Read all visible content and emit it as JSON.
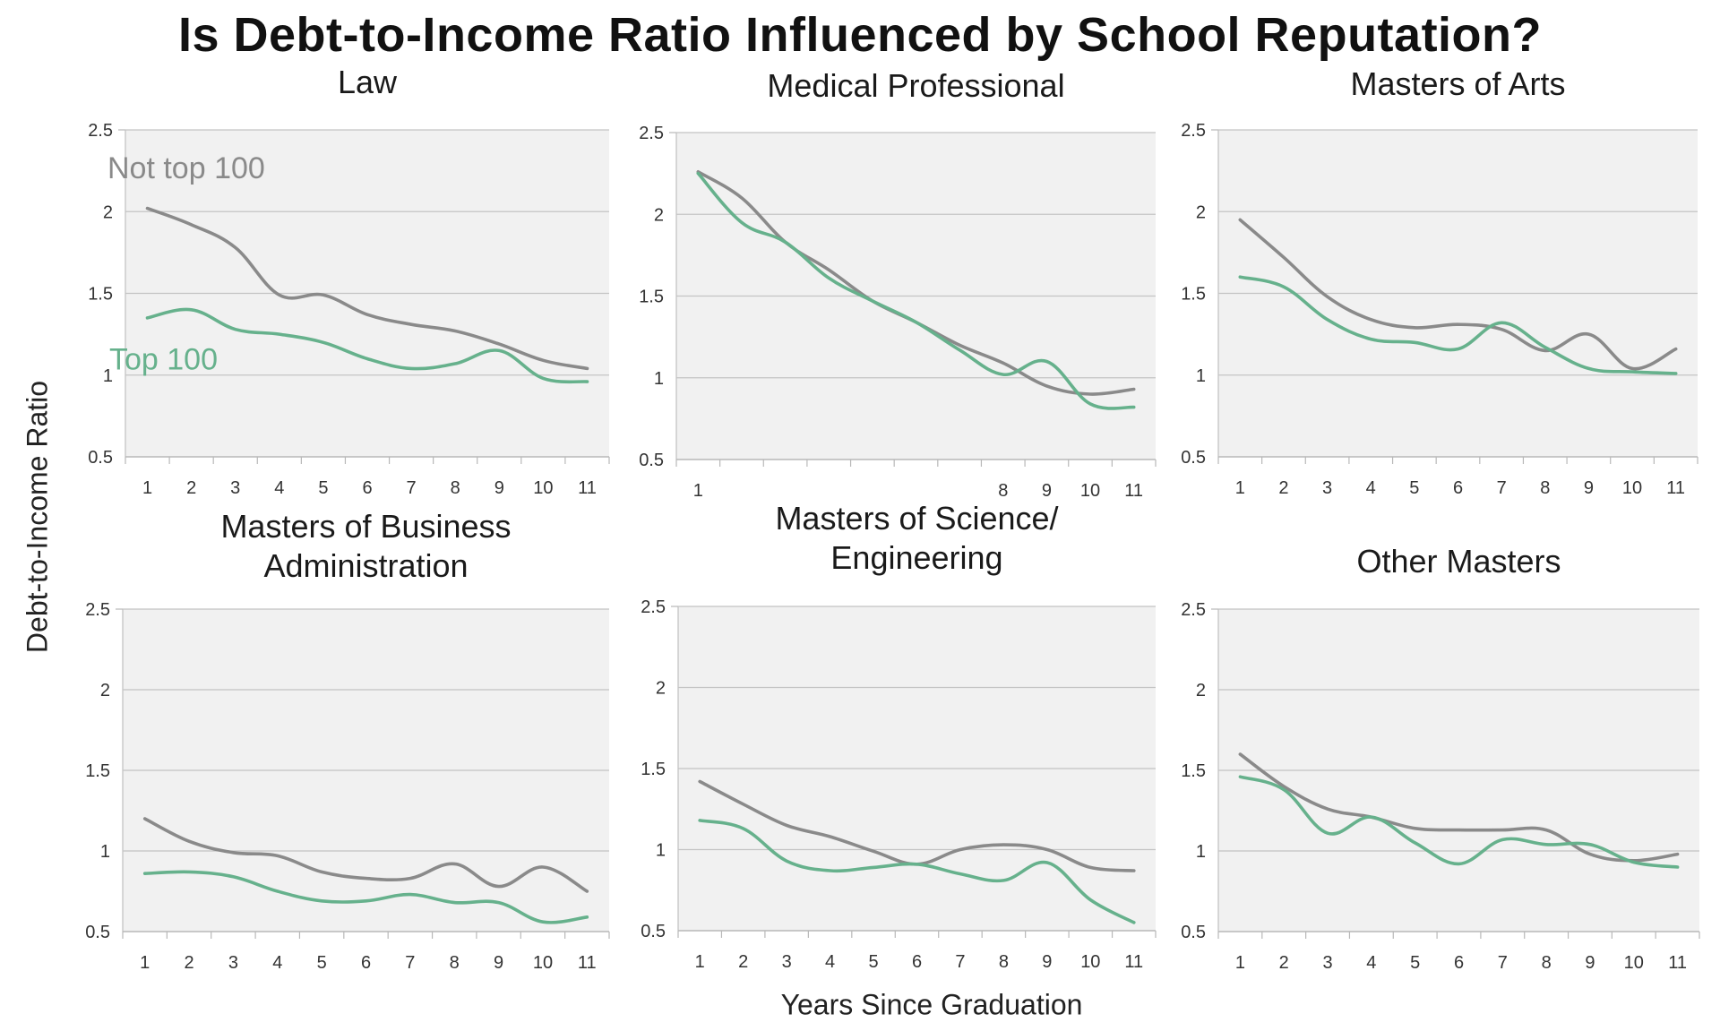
{
  "title": "Is Debt-to-Income Ratio Influenced by School Reputation?",
  "y_axis_label": "Debt-to-Income Ratio",
  "x_axis_label": "Years Since Graduation",
  "colors": {
    "not_top_100": "#8a8a8a",
    "top_100": "#66b18c",
    "plot_bg": "#f1f1f1",
    "grid": "#c4c4c4"
  },
  "chart_data": [
    {
      "type": "line",
      "title_lines": [
        "Law"
      ],
      "x": [
        1,
        2,
        3,
        4,
        5,
        6,
        7,
        8,
        9,
        10,
        11
      ],
      "x_tick_labels": [
        "1",
        "2",
        "3",
        "4",
        "5",
        "6",
        "7",
        "8",
        "9",
        "10",
        "11"
      ],
      "y_ticks": [
        0.5,
        1,
        1.5,
        2,
        2.5
      ],
      "ylim": [
        0.5,
        2.5
      ],
      "series": [
        {
          "name": "Not top 100",
          "values": [
            2.02,
            1.92,
            1.78,
            1.49,
            1.49,
            1.37,
            1.31,
            1.27,
            1.19,
            1.09,
            1.04
          ]
        },
        {
          "name": "Top 100",
          "values": [
            1.35,
            1.4,
            1.28,
            1.25,
            1.2,
            1.1,
            1.04,
            1.07,
            1.15,
            0.98,
            0.96
          ]
        }
      ]
    },
    {
      "type": "line",
      "title_lines": [
        "Medical Professional"
      ],
      "x": [
        1,
        2,
        3,
        4,
        5,
        6,
        7,
        8,
        9,
        10,
        11
      ],
      "x_tick_labels": [
        "1",
        "",
        "",
        "",
        "",
        "",
        "",
        "8",
        "9",
        "10",
        "11"
      ],
      "y_ticks": [
        0.5,
        1,
        1.5,
        2,
        2.5
      ],
      "ylim": [
        0.5,
        2.5
      ],
      "series": [
        {
          "name": "Not top 100",
          "values": [
            2.26,
            2.1,
            1.83,
            1.66,
            1.47,
            1.34,
            1.2,
            1.09,
            0.95,
            0.9,
            0.93
          ]
        },
        {
          "name": "Top 100",
          "values": [
            2.25,
            1.95,
            1.83,
            1.61,
            1.47,
            1.34,
            1.17,
            1.02,
            1.1,
            0.84,
            0.82
          ]
        }
      ]
    },
    {
      "type": "line",
      "title_lines": [
        "Masters of Arts"
      ],
      "x": [
        1,
        2,
        3,
        4,
        5,
        6,
        7,
        8,
        9,
        10,
        11
      ],
      "x_tick_labels": [
        "1",
        "2",
        "3",
        "4",
        "5",
        "6",
        "7",
        "8",
        "9",
        "10",
        "11"
      ],
      "y_ticks": [
        0.5,
        1,
        1.5,
        2,
        2.5
      ],
      "ylim": [
        0.5,
        2.5
      ],
      "series": [
        {
          "name": "Not top 100",
          "values": [
            1.95,
            1.72,
            1.48,
            1.34,
            1.29,
            1.31,
            1.28,
            1.15,
            1.25,
            1.04,
            1.16
          ]
        },
        {
          "name": "Top 100",
          "values": [
            1.6,
            1.54,
            1.34,
            1.22,
            1.2,
            1.16,
            1.32,
            1.17,
            1.04,
            1.02,
            1.01
          ]
        }
      ]
    },
    {
      "type": "line",
      "title_lines": [
        "Masters of Business",
        "Administration"
      ],
      "x": [
        1,
        2,
        3,
        4,
        5,
        6,
        7,
        8,
        9,
        10,
        11
      ],
      "x_tick_labels": [
        "1",
        "2",
        "3",
        "4",
        "5",
        "6",
        "7",
        "8",
        "9",
        "10",
        "11"
      ],
      "y_ticks": [
        0.5,
        1,
        1.5,
        2,
        2.5
      ],
      "ylim": [
        0.5,
        2.5
      ],
      "series": [
        {
          "name": "Not top 100",
          "values": [
            1.2,
            1.06,
            0.99,
            0.97,
            0.87,
            0.83,
            0.83,
            0.92,
            0.78,
            0.9,
            0.75
          ]
        },
        {
          "name": "Top 100",
          "values": [
            0.86,
            0.87,
            0.84,
            0.75,
            0.69,
            0.69,
            0.73,
            0.68,
            0.68,
            0.56,
            0.59
          ]
        }
      ]
    },
    {
      "type": "line",
      "title_lines": [
        "Masters of Science/",
        "Engineering"
      ],
      "x": [
        1,
        2,
        3,
        4,
        5,
        6,
        7,
        8,
        9,
        10,
        11
      ],
      "x_tick_labels": [
        "1",
        "2",
        "3",
        "4",
        "5",
        "6",
        "7",
        "8",
        "9",
        "10",
        "11"
      ],
      "y_ticks": [
        0.5,
        1,
        1.5,
        2,
        2.5
      ],
      "ylim": [
        0.5,
        2.5
      ],
      "series": [
        {
          "name": "Not top 100",
          "values": [
            1.42,
            1.28,
            1.15,
            1.08,
            0.99,
            0.91,
            1.0,
            1.03,
            1.0,
            0.89,
            0.87
          ]
        },
        {
          "name": "Top 100",
          "values": [
            1.18,
            1.13,
            0.93,
            0.87,
            0.89,
            0.91,
            0.85,
            0.81,
            0.92,
            0.69,
            0.55
          ]
        }
      ]
    },
    {
      "type": "line",
      "title_lines": [
        "Other Masters"
      ],
      "x": [
        1,
        2,
        3,
        4,
        5,
        6,
        7,
        8,
        9,
        10,
        11
      ],
      "x_tick_labels": [
        "1",
        "2",
        "3",
        "4",
        "5",
        "6",
        "7",
        "8",
        "9",
        "10",
        "11"
      ],
      "y_ticks": [
        0.5,
        1,
        1.5,
        2,
        2.5
      ],
      "ylim": [
        0.5,
        2.5
      ],
      "series": [
        {
          "name": "Not top 100",
          "values": [
            1.6,
            1.4,
            1.26,
            1.21,
            1.14,
            1.13,
            1.13,
            1.13,
            0.98,
            0.94,
            0.98
          ]
        },
        {
          "name": "Top 100",
          "values": [
            1.46,
            1.38,
            1.11,
            1.21,
            1.05,
            0.92,
            1.07,
            1.04,
            1.04,
            0.93,
            0.9
          ]
        }
      ]
    }
  ]
}
